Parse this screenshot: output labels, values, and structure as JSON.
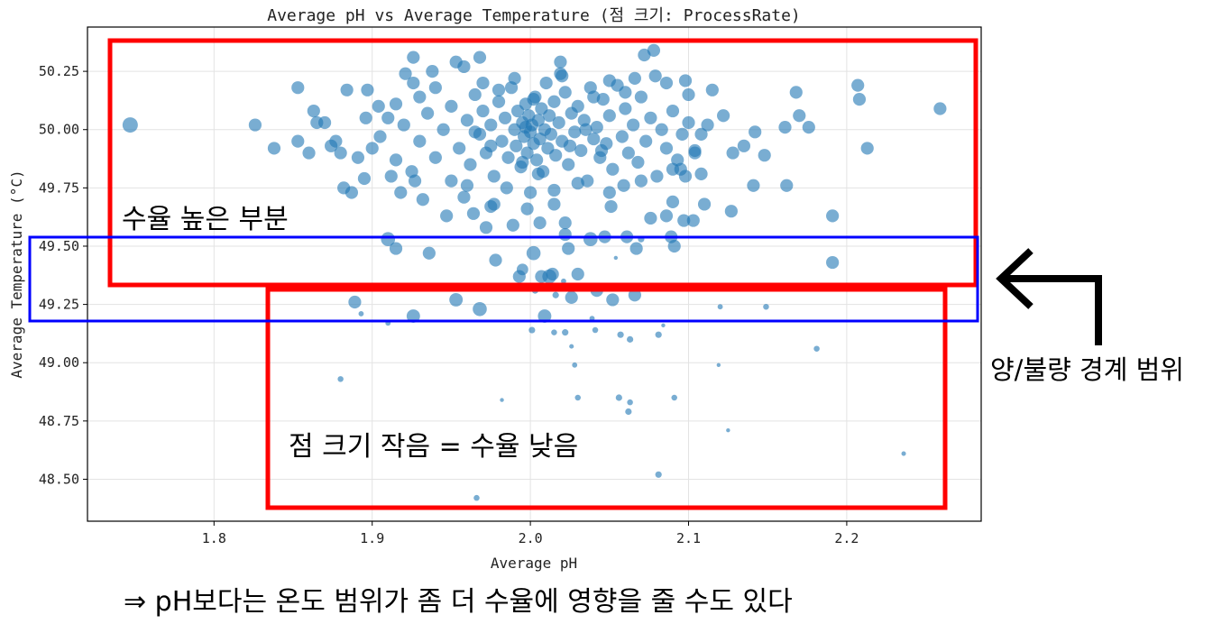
{
  "chart_data": {
    "type": "scatter",
    "title": "Average pH vs Average Temperature (점 크기: ProcessRate)",
    "xlabel": "Average pH",
    "ylabel": "Average Temperature (°C)",
    "xlim": [
      1.72,
      2.285
    ],
    "ylim": [
      48.32,
      50.44
    ],
    "x_ticks": [
      "1.8",
      "1.9",
      "2.0",
      "2.1",
      "2.2"
    ],
    "y_ticks": [
      "48.50",
      "48.75",
      "49.00",
      "49.25",
      "49.50",
      "49.75",
      "50.00",
      "50.25"
    ],
    "grid": true,
    "marker_color": "#1f77b4",
    "marker_alpha": 0.6,
    "size_encodes": "ProcessRate (relative, 0-1)",
    "points_format": [
      "pH",
      "temperature",
      "process_rate_relative"
    ],
    "points": [
      [
        1.747,
        50.02,
        1
      ],
      [
        1.826,
        50.02,
        0.8
      ],
      [
        1.838,
        49.92,
        0.8
      ],
      [
        1.853,
        50.18,
        0.8
      ],
      [
        1.853,
        49.95,
        0.8
      ],
      [
        1.863,
        50.08,
        0.8
      ],
      [
        1.865,
        50.03,
        0.8
      ],
      [
        1.877,
        49.95,
        0.8
      ],
      [
        1.882,
        49.75,
        0.8
      ],
      [
        1.887,
        49.73,
        0.8
      ],
      [
        1.884,
        50.17,
        0.8
      ],
      [
        1.897,
        50.17,
        0.8
      ],
      [
        1.896,
        50.05,
        0.8
      ],
      [
        1.889,
        49.26,
        0.8
      ],
      [
        1.893,
        49.21,
        0.2
      ],
      [
        1.91,
        49.17,
        0.2
      ],
      [
        1.88,
        48.93,
        0.25
      ],
      [
        1.91,
        49.53,
        0.9
      ],
      [
        1.915,
        49.49,
        0.8
      ],
      [
        1.936,
        49.47,
        0.8
      ],
      [
        1.926,
        49.2,
        0.85
      ],
      [
        1.953,
        49.27,
        0.85
      ],
      [
        1.968,
        49.23,
        0.9
      ],
      [
        1.978,
        49.44,
        0.8
      ],
      [
        1.993,
        49.37,
        0.8
      ],
      [
        1.995,
        49.4,
        0.7
      ],
      [
        2.009,
        49.2,
        0.85
      ],
      [
        2.003,
        49.31,
        0.3
      ],
      [
        2.012,
        49.37,
        0.9
      ],
      [
        2.014,
        49.38,
        0.8
      ],
      [
        2.021,
        49.35,
        0.2
      ],
      [
        2.03,
        49.38,
        0.8
      ],
      [
        2.026,
        49.28,
        0.8
      ],
      [
        2.042,
        49.31,
        0.8
      ],
      [
        2.052,
        49.27,
        0.8
      ],
      [
        2.066,
        49.29,
        0.8
      ],
      [
        2.016,
        49.29,
        0.3
      ],
      [
        2.001,
        49.14,
        0.3
      ],
      [
        2.015,
        49.13,
        0.25
      ],
      [
        2.022,
        49.13,
        0.3
      ],
      [
        2.026,
        49.07,
        0.15
      ],
      [
        2.028,
        48.99,
        0.2
      ],
      [
        2.039,
        49.19,
        0.2
      ],
      [
        2.041,
        49.14,
        0.25
      ],
      [
        2.057,
        49.12,
        0.3
      ],
      [
        2.063,
        49.1,
        0.3
      ],
      [
        2.081,
        49.12,
        0.3
      ],
      [
        2.084,
        49.16,
        0.1
      ],
      [
        2.03,
        48.85,
        0.25
      ],
      [
        2.056,
        48.85,
        0.3
      ],
      [
        2.063,
        48.83,
        0.25
      ],
      [
        2.062,
        48.79,
        0.3
      ],
      [
        2.091,
        48.85,
        0.25
      ],
      [
        1.982,
        48.84,
        0.1
      ],
      [
        2.119,
        48.99,
        0.1
      ],
      [
        2.12,
        49.24,
        0.2
      ],
      [
        2.149,
        49.24,
        0.25
      ],
      [
        2.125,
        48.71,
        0.1
      ],
      [
        2.181,
        49.06,
        0.25
      ],
      [
        2.236,
        48.61,
        0.15
      ],
      [
        2.081,
        48.52,
        0.3
      ],
      [
        1.966,
        48.42,
        0.25
      ],
      [
        2.054,
        49.45,
        0.1
      ],
      [
        2.038,
        49.53,
        0.9
      ],
      [
        2.047,
        49.54,
        0.8
      ],
      [
        2.061,
        49.54,
        0.8
      ],
      [
        2.067,
        49.49,
        0.8
      ],
      [
        2.07,
        49.53,
        0.3
      ],
      [
        2.089,
        49.54,
        0.8
      ],
      [
        2.091,
        49.5,
        0.8
      ],
      [
        2.086,
        49.63,
        0.8
      ],
      [
        2.097,
        49.61,
        0.8
      ],
      [
        2.103,
        49.61,
        0.8
      ],
      [
        2.11,
        49.68,
        0.8
      ],
      [
        2.127,
        49.65,
        0.8
      ],
      [
        2.076,
        49.62,
        0.8
      ],
      [
        2.191,
        49.63,
        0.8
      ],
      [
        2.191,
        49.43,
        0.8
      ],
      [
        2.207,
        50.19,
        0.8
      ],
      [
        2.208,
        50.13,
        0.8
      ],
      [
        2.213,
        49.92,
        0.8
      ],
      [
        2.259,
        50.09,
        0.8
      ],
      [
        2.162,
        49.76,
        0.8
      ],
      [
        2.168,
        50.16,
        0.8
      ],
      [
        2.17,
        50.06,
        0.8
      ],
      [
        2.176,
        50.01,
        0.8
      ],
      [
        2.161,
        50.01,
        0.8
      ],
      [
        2.142,
        49.99,
        0.8
      ],
      [
        2.148,
        49.89,
        0.8
      ],
      [
        2.141,
        49.76,
        0.8
      ],
      [
        2.135,
        49.93,
        0.8
      ],
      [
        2.128,
        49.9,
        0.8
      ],
      [
        2.115,
        50.17,
        0.8
      ],
      [
        2.122,
        50.06,
        0.8
      ],
      [
        2.1,
        50.15,
        0.8
      ],
      [
        2.098,
        50.21,
        0.8
      ],
      [
        2.086,
        50.2,
        0.8
      ],
      [
        2.079,
        50.23,
        0.8
      ],
      [
        2.072,
        50.32,
        0.8
      ],
      [
        2.078,
        50.34,
        0.8
      ],
      [
        2.066,
        50.22,
        0.8
      ],
      [
        2.019,
        50.29,
        0.8
      ],
      [
        2.019,
        50.24,
        0.8
      ],
      [
        1.968,
        50.31,
        0.8
      ],
      [
        1.953,
        50.29,
        0.8
      ],
      [
        1.958,
        50.27,
        0.8
      ],
      [
        1.926,
        50.31,
        0.8
      ],
      [
        1.921,
        50.24,
        0.8
      ],
      [
        1.926,
        50.2,
        0.8
      ],
      [
        1.938,
        50.25,
        0.8
      ],
      [
        2.002,
        50.13,
        0.8
      ],
      [
        1.997,
        50.01,
        0.8
      ],
      [
        1.932,
        49.7,
        0.8
      ],
      [
        1.947,
        49.63,
        0.8
      ],
      [
        1.964,
        49.64,
        0.8
      ],
      [
        1.975,
        49.67,
        0.8
      ],
      [
        1.972,
        49.58,
        0.8
      ],
      [
        1.989,
        49.59,
        0.8
      ],
      [
        2.006,
        49.6,
        0.8
      ],
      [
        2.022,
        49.6,
        0.8
      ],
      [
        2.022,
        49.55,
        0.8
      ],
      [
        2.002,
        49.47,
        0.9
      ],
      [
        2.024,
        49.49,
        0.8
      ],
      [
        2.007,
        49.37,
        0.8
      ],
      [
        1.977,
        49.68,
        0.8
      ],
      [
        1.958,
        49.71,
        0.8
      ],
      [
        1.998,
        49.66,
        0.8
      ],
      [
        2.015,
        49.68,
        0.8
      ],
      [
        2.051,
        49.67,
        0.8
      ],
      [
        2.059,
        49.76,
        0.8
      ],
      [
        2.09,
        49.69,
        0.8
      ],
      [
        2.098,
        49.8,
        0.8
      ],
      [
        2.095,
        49.83,
        0.8
      ],
      [
        2.104,
        49.91,
        0.8
      ],
      [
        2.108,
        49.81,
        0.8
      ],
      [
        1.927,
        49.78,
        0.8
      ],
      [
        1.912,
        49.8,
        0.8
      ],
      [
        1.918,
        49.73,
        0.8
      ],
      [
        1.895,
        49.79,
        0.8
      ],
      [
        1.891,
        49.88,
        0.8
      ],
      [
        1.88,
        49.9,
        0.8
      ],
      [
        1.874,
        49.93,
        0.8
      ],
      [
        1.86,
        49.9,
        0.8
      ],
      [
        1.87,
        50.03,
        0.8
      ],
      [
        1.904,
        50.1,
        0.8
      ],
      [
        1.915,
        50.11,
        0.8
      ],
      [
        1.92,
        50.02,
        0.8
      ],
      [
        1.93,
        49.95,
        0.8
      ],
      [
        1.935,
        50.07,
        0.8
      ],
      [
        1.94,
        49.88,
        0.8
      ],
      [
        1.945,
        50.0,
        0.8
      ],
      [
        1.95,
        50.1,
        0.8
      ],
      [
        1.955,
        49.92,
        0.8
      ],
      [
        1.96,
        50.04,
        0.8
      ],
      [
        1.962,
        49.85,
        0.8
      ],
      [
        1.965,
        50.15,
        0.8
      ],
      [
        1.968,
        49.98,
        0.8
      ],
      [
        1.97,
        50.08,
        0.8
      ],
      [
        1.972,
        49.9,
        0.8
      ],
      [
        1.975,
        50.02,
        0.8
      ],
      [
        1.977,
        49.8,
        0.8
      ],
      [
        1.98,
        50.12,
        0.8
      ],
      [
        1.982,
        49.95,
        0.8
      ],
      [
        1.984,
        50.05,
        0.8
      ],
      [
        1.986,
        49.88,
        0.8
      ],
      [
        1.988,
        50.18,
        0.8
      ],
      [
        1.99,
        50.0,
        0.8
      ],
      [
        1.991,
        49.93,
        0.8
      ],
      [
        1.992,
        50.08,
        0.8
      ],
      [
        1.994,
        49.84,
        0.8
      ],
      [
        1.995,
        50.03,
        0.8
      ],
      [
        1.996,
        49.97,
        0.8
      ],
      [
        1.997,
        50.11,
        0.8
      ],
      [
        1.998,
        49.9,
        0.8
      ],
      [
        1.999,
        50.06,
        0.8
      ],
      [
        2.0,
        49.99,
        0.8
      ],
      [
        2.001,
        50.02,
        0.8
      ],
      [
        2.002,
        49.94,
        0.8
      ],
      [
        2.003,
        50.14,
        0.8
      ],
      [
        2.004,
        49.87,
        0.8
      ],
      [
        2.005,
        50.04,
        0.8
      ],
      [
        2.006,
        49.96,
        0.8
      ],
      [
        2.007,
        50.09,
        0.8
      ],
      [
        2.008,
        49.82,
        0.8
      ],
      [
        2.009,
        50.0,
        0.8
      ],
      [
        2.01,
        50.2,
        0.8
      ],
      [
        2.011,
        49.92,
        0.8
      ],
      [
        2.012,
        50.06,
        0.8
      ],
      [
        2.013,
        49.98,
        0.8
      ],
      [
        2.015,
        50.12,
        0.8
      ],
      [
        2.016,
        49.89,
        0.8
      ],
      [
        2.018,
        50.03,
        0.8
      ],
      [
        2.02,
        49.95,
        0.8
      ],
      [
        2.022,
        50.16,
        0.8
      ],
      [
        2.024,
        49.85,
        0.8
      ],
      [
        2.026,
        50.07,
        0.8
      ],
      [
        2.028,
        49.99,
        0.8
      ],
      [
        2.03,
        50.1,
        0.8
      ],
      [
        2.032,
        49.91,
        0.8
      ],
      [
        2.034,
        50.04,
        0.8
      ],
      [
        2.036,
        49.78,
        0.8
      ],
      [
        2.038,
        50.18,
        0.8
      ],
      [
        2.04,
        49.96,
        0.8
      ],
      [
        2.042,
        50.01,
        0.8
      ],
      [
        2.044,
        49.88,
        0.8
      ],
      [
        2.046,
        50.13,
        0.8
      ],
      [
        2.048,
        49.94,
        0.8
      ],
      [
        2.05,
        50.06,
        0.8
      ],
      [
        2.052,
        49.83,
        0.8
      ],
      [
        2.055,
        50.19,
        0.8
      ],
      [
        2.058,
        49.97,
        0.8
      ],
      [
        2.06,
        50.09,
        0.8
      ],
      [
        2.062,
        49.9,
        0.8
      ],
      [
        2.065,
        50.02,
        0.8
      ],
      [
        2.068,
        49.86,
        0.8
      ],
      [
        2.07,
        50.14,
        0.8
      ],
      [
        2.073,
        49.95,
        0.8
      ],
      [
        2.076,
        50.05,
        0.8
      ],
      [
        2.08,
        49.8,
        0.8
      ],
      [
        2.083,
        50.0,
        0.8
      ],
      [
        2.086,
        49.92,
        0.8
      ],
      [
        2.09,
        50.08,
        0.8
      ],
      [
        2.093,
        49.87,
        0.8
      ],
      [
        2.096,
        49.98,
        0.8
      ],
      [
        2.1,
        50.03,
        0.8
      ],
      [
        2.104,
        49.9,
        0.8
      ],
      [
        2.108,
        49.98,
        0.8
      ],
      [
        2.112,
        50.02,
        0.8
      ],
      [
        1.905,
        49.97,
        0.8
      ],
      [
        1.91,
        50.05,
        0.8
      ],
      [
        1.915,
        49.87,
        0.8
      ],
      [
        1.9,
        49.92,
        0.8
      ],
      [
        1.925,
        49.82,
        0.8
      ],
      [
        1.93,
        50.14,
        0.8
      ],
      [
        1.94,
        50.18,
        0.8
      ],
      [
        1.95,
        49.78,
        0.8
      ],
      [
        1.96,
        49.76,
        0.8
      ],
      [
        1.985,
        49.75,
        0.8
      ],
      [
        2.0,
        49.73,
        0.8
      ],
      [
        2.015,
        49.74,
        0.8
      ],
      [
        2.03,
        49.77,
        0.8
      ],
      [
        2.05,
        49.73,
        0.8
      ],
      [
        2.07,
        49.78,
        0.8
      ],
      [
        2.09,
        49.83,
        0.8
      ],
      [
        1.97,
        50.2,
        0.8
      ],
      [
        1.99,
        50.22,
        0.8
      ],
      [
        2.02,
        50.23,
        0.8
      ],
      [
        2.05,
        50.21,
        0.8
      ],
      [
        2.06,
        50.16,
        0.8
      ],
      [
        1.98,
        50.17,
        0.8
      ],
      [
        2.04,
        50.14,
        0.8
      ],
      [
        1.995,
        49.86,
        0.8
      ],
      [
        2.005,
        49.81,
        0.8
      ],
      [
        2.025,
        49.93,
        0.8
      ],
      [
        1.975,
        49.93,
        0.8
      ],
      [
        2.035,
        50.0,
        0.8
      ],
      [
        1.965,
        49.99,
        0.8
      ],
      [
        2.045,
        49.91,
        0.8
      ]
    ]
  },
  "annotations": {
    "high_yield_label": "수율 높은 부분",
    "low_yield_label": "점 크기 작음 = 수율 낮음",
    "boundary_label": "양/불량 경계 범위",
    "conclusion": "⇒ pH보다는 온도 범위가 좀 더 수율에 영향을 줄 수도 있다",
    "high_box_color": "#ff0000",
    "low_box_color": "#ff0000",
    "boundary_box_color": "#0000ff",
    "arrow_color": "#000000"
  }
}
